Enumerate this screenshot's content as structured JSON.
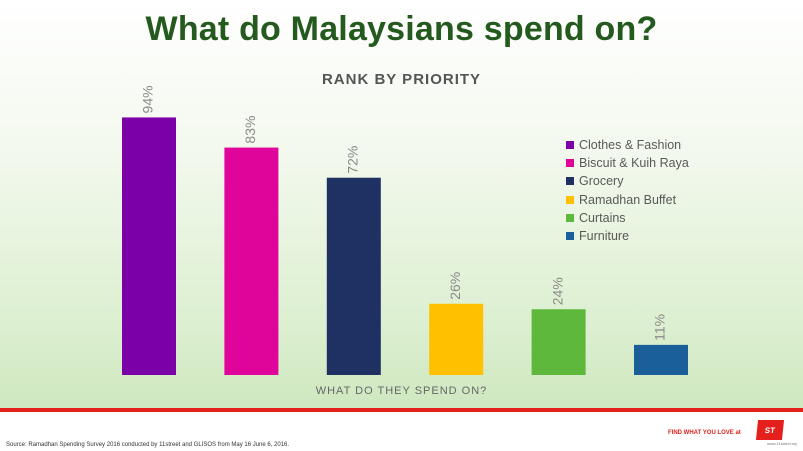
{
  "slide": {
    "title": "What do Malaysians spend on?",
    "source": "Source: Ramadhan Spending Survey 2016 conducted by 11street and GLISOS from May 16 June 6, 2016.",
    "tagline": "FIND WHAT YOU LOVE at",
    "logo_text": "ST",
    "logo_url": "www.11street.my"
  },
  "colors": {
    "title": "#245a1e",
    "accent_red": "#e3201b"
  },
  "chart_data": {
    "type": "bar",
    "title": "RANK BY PRIORITY",
    "xlabel": "WHAT DO THEY SPEND ON?",
    "ylabel": "",
    "ylim": [
      0,
      100
    ],
    "categories": [
      "Clothes & Fashion",
      "Biscuit & Kuih Raya",
      "Grocery",
      "Ramadhan Buffet",
      "Curtains",
      "Furniture"
    ],
    "values": [
      94,
      83,
      72,
      26,
      24,
      11
    ],
    "data_labels": [
      "94%",
      "83%",
      "72%",
      "26%",
      "24%",
      "11%"
    ],
    "colors": [
      "#7b00a8",
      "#e0059a",
      "#1f3162",
      "#ffc000",
      "#5db83b",
      "#1a5e9a"
    ],
    "legend": {
      "position": "right",
      "entries": [
        "Clothes & Fashion",
        "Biscuit & Kuih Raya",
        "Grocery",
        "Ramadhan Buffet",
        "Curtains",
        "Furniture"
      ]
    },
    "grid": false
  }
}
